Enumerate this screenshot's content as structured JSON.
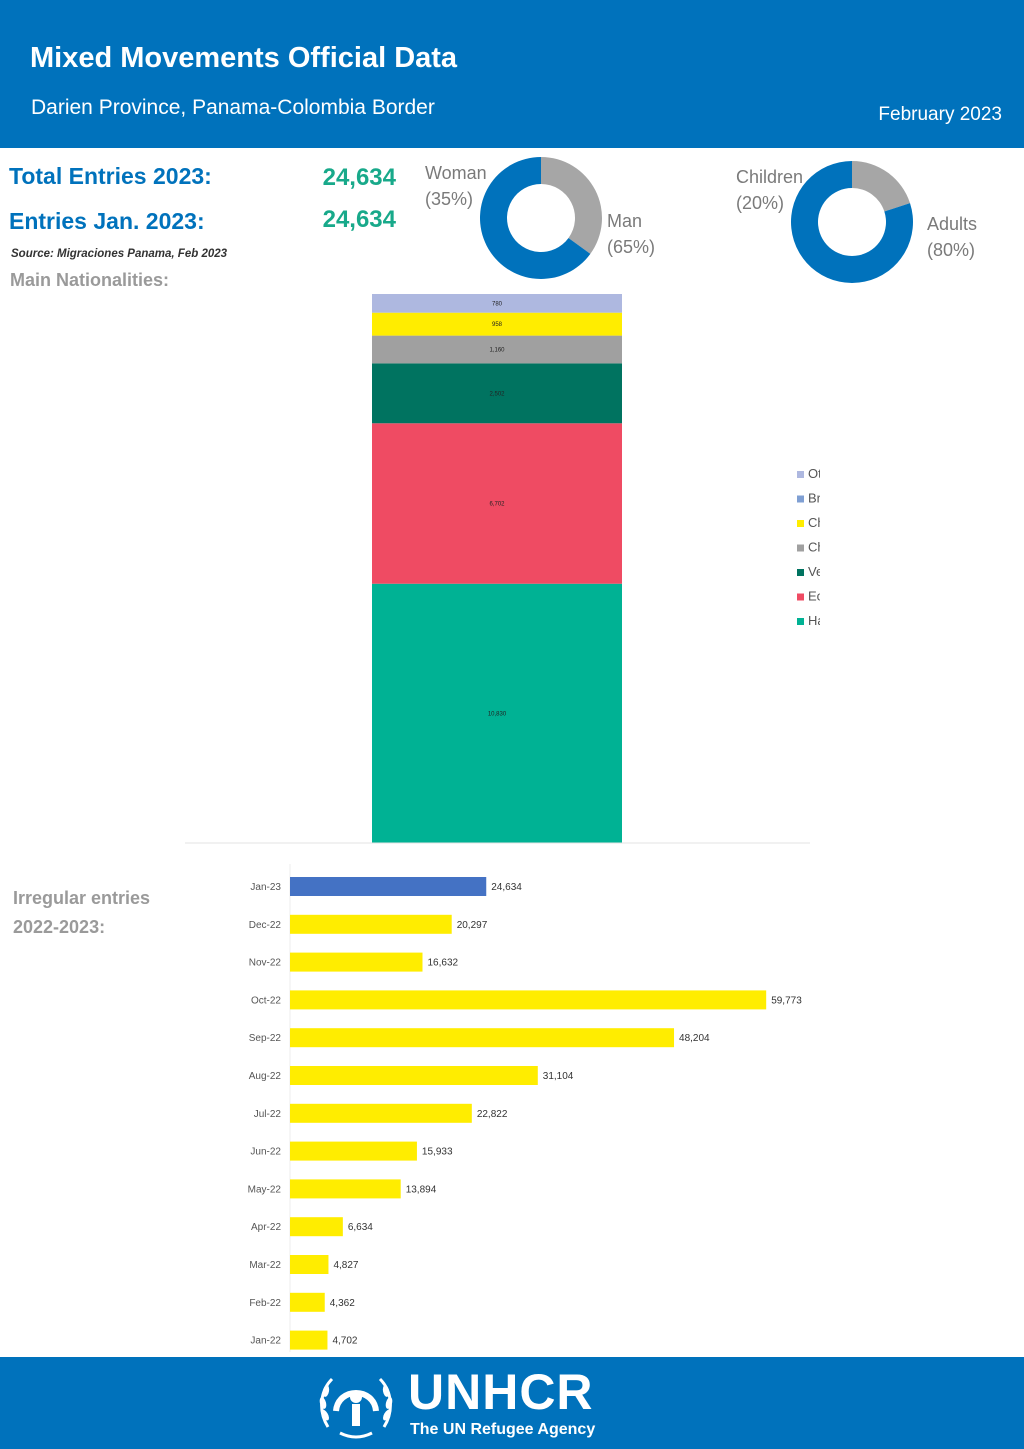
{
  "header": {
    "title": "Mixed Movements Official Data",
    "subtitle": "Darien Province, Panama-Colombia Border",
    "date": "February 2023"
  },
  "stats": {
    "total_label": "Total Entries 2023:",
    "total_value": "24,634",
    "jan_label": "Entries Jan. 2023:",
    "jan_value": "24,634",
    "source": "Source: Migraciones Panama, Feb 2023"
  },
  "sections": {
    "nationalities": "Main Nationalities:",
    "irregular_line1": "Irregular entries",
    "irregular_line2": "2022-2023:"
  },
  "colors": {
    "blue": "#0072bc",
    "grey": "#a6a6a6",
    "yellow": "#ffed00",
    "jan23": "#4472c4",
    "green_value": "#18a98a"
  },
  "footer": {
    "org": "UNHCR",
    "tagline": "The UN Refugee Agency",
    "emblem": "unhcr-emblem-icon"
  },
  "chart_data": [
    {
      "type": "pie",
      "variant": "donut",
      "labels": [
        "Woman",
        "Man"
      ],
      "values": [
        35,
        65
      ],
      "display": [
        "(35%)",
        "(65%)"
      ],
      "colors": [
        "#a6a6a6",
        "#0072bc"
      ]
    },
    {
      "type": "pie",
      "variant": "donut",
      "labels": [
        "Children",
        "Adults"
      ],
      "values": [
        20,
        80
      ],
      "display": [
        "(20%)",
        "(80%)"
      ],
      "colors": [
        "#a6a6a6",
        "#0072bc"
      ]
    },
    {
      "type": "bar",
      "variant": "stacked",
      "categories": [
        "Haiti",
        "Ecuador",
        "Venezuela",
        "Chile",
        "China",
        "Brasil",
        "Others"
      ],
      "values": [
        10830,
        6702,
        2502,
        1160,
        958,
        0,
        780
      ],
      "colors": [
        "#00b294",
        "#ef4b63",
        "#007360",
        "#a0a0a0",
        "#ffed00",
        "#7f9fd3",
        "#aeb8e0"
      ],
      "legend_order": [
        "Others",
        "Brasil",
        "China",
        "Chile",
        "Venezuela",
        "Ecuador",
        "Haiti"
      ],
      "legend": "right"
    },
    {
      "type": "bar",
      "orientation": "horizontal",
      "categories": [
        "Jan-23",
        "Dec-22",
        "Nov-22",
        "Oct-22",
        "Sep-22",
        "Aug-22",
        "Jul-22",
        "Jun-22",
        "May-22",
        "Apr-22",
        "Mar-22",
        "Feb-22",
        "Jan-22"
      ],
      "values": [
        24634,
        20297,
        16632,
        59773,
        48204,
        31104,
        22822,
        15933,
        13894,
        6634,
        4827,
        4362,
        4702
      ],
      "value_labels": [
        "24,634",
        "20,297",
        "16,632",
        "59,773",
        "48,204",
        "31,104",
        "22,822",
        "15,933",
        "13,894",
        "6,634",
        "4,827",
        "4,362",
        "4,702"
      ],
      "colors": [
        "#4472c4",
        "#ffed00",
        "#ffed00",
        "#ffed00",
        "#ffed00",
        "#ffed00",
        "#ffed00",
        "#ffed00",
        "#ffed00",
        "#ffed00",
        "#ffed00",
        "#ffed00",
        "#ffed00"
      ],
      "xlim": [
        0,
        60000
      ]
    }
  ]
}
